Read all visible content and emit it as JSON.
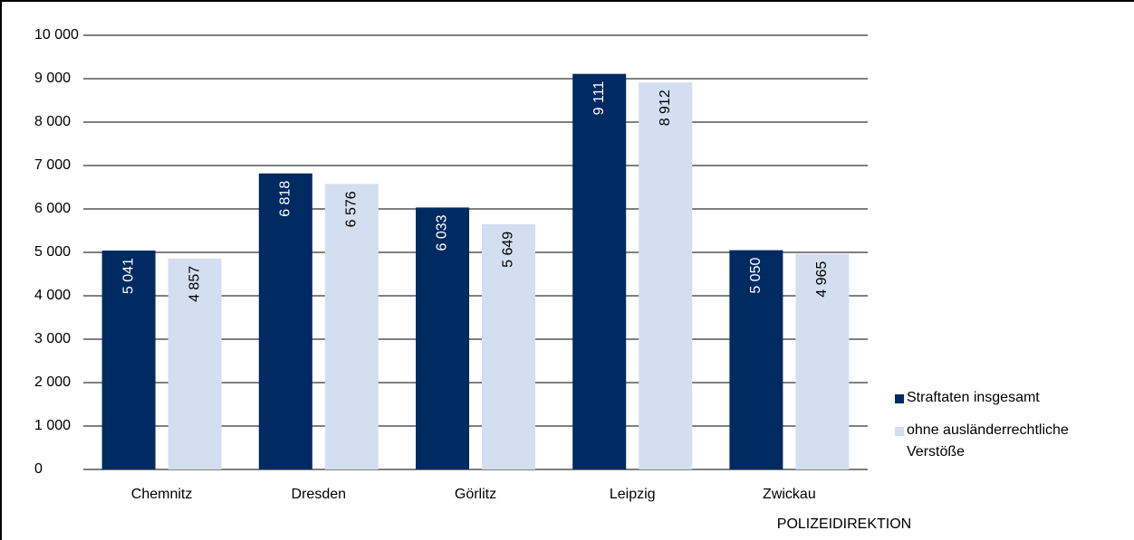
{
  "chart_data": {
    "type": "bar",
    "categories": [
      "Chemnitz",
      "Dresden",
      "Görlitz",
      "Leipzig",
      "Zwickau"
    ],
    "series": [
      {
        "name": "Straftaten insgesamt",
        "color": "#002a62",
        "values": [
          5041,
          6818,
          6033,
          9111,
          5050
        ],
        "value_labels": [
          "5 041",
          "6 818",
          "6 033",
          "9 111",
          "5 050"
        ]
      },
      {
        "name": "ohne ausländerrechtliche Verstöße",
        "color": "#d3dff0",
        "values": [
          4857,
          6576,
          5649,
          8912,
          4965
        ],
        "value_labels": [
          "4 857",
          "6 576",
          "5 649",
          "8 912",
          "4 965"
        ]
      }
    ],
    "x_label": "POLIZEIDIREKTION",
    "ylim": [
      0,
      10000
    ],
    "yticks": [
      0,
      {
        "value": 1000,
        "label": "1 000"
      },
      {
        "value": 2000,
        "label": "2 000"
      },
      {
        "value": 3000,
        "label": "3 000"
      },
      {
        "value": 4000,
        "label": "4 000"
      },
      {
        "value": 5000,
        "label": "5 000"
      },
      {
        "value": 6000,
        "label": "6 000"
      },
      {
        "value": 7000,
        "label": "7 000"
      },
      {
        "value": 8000,
        "label": "8 000"
      },
      {
        "value": 9000,
        "label": "9 000"
      },
      {
        "value": 10000,
        "label": "10 000"
      }
    ],
    "grid": true,
    "legend": "right"
  }
}
